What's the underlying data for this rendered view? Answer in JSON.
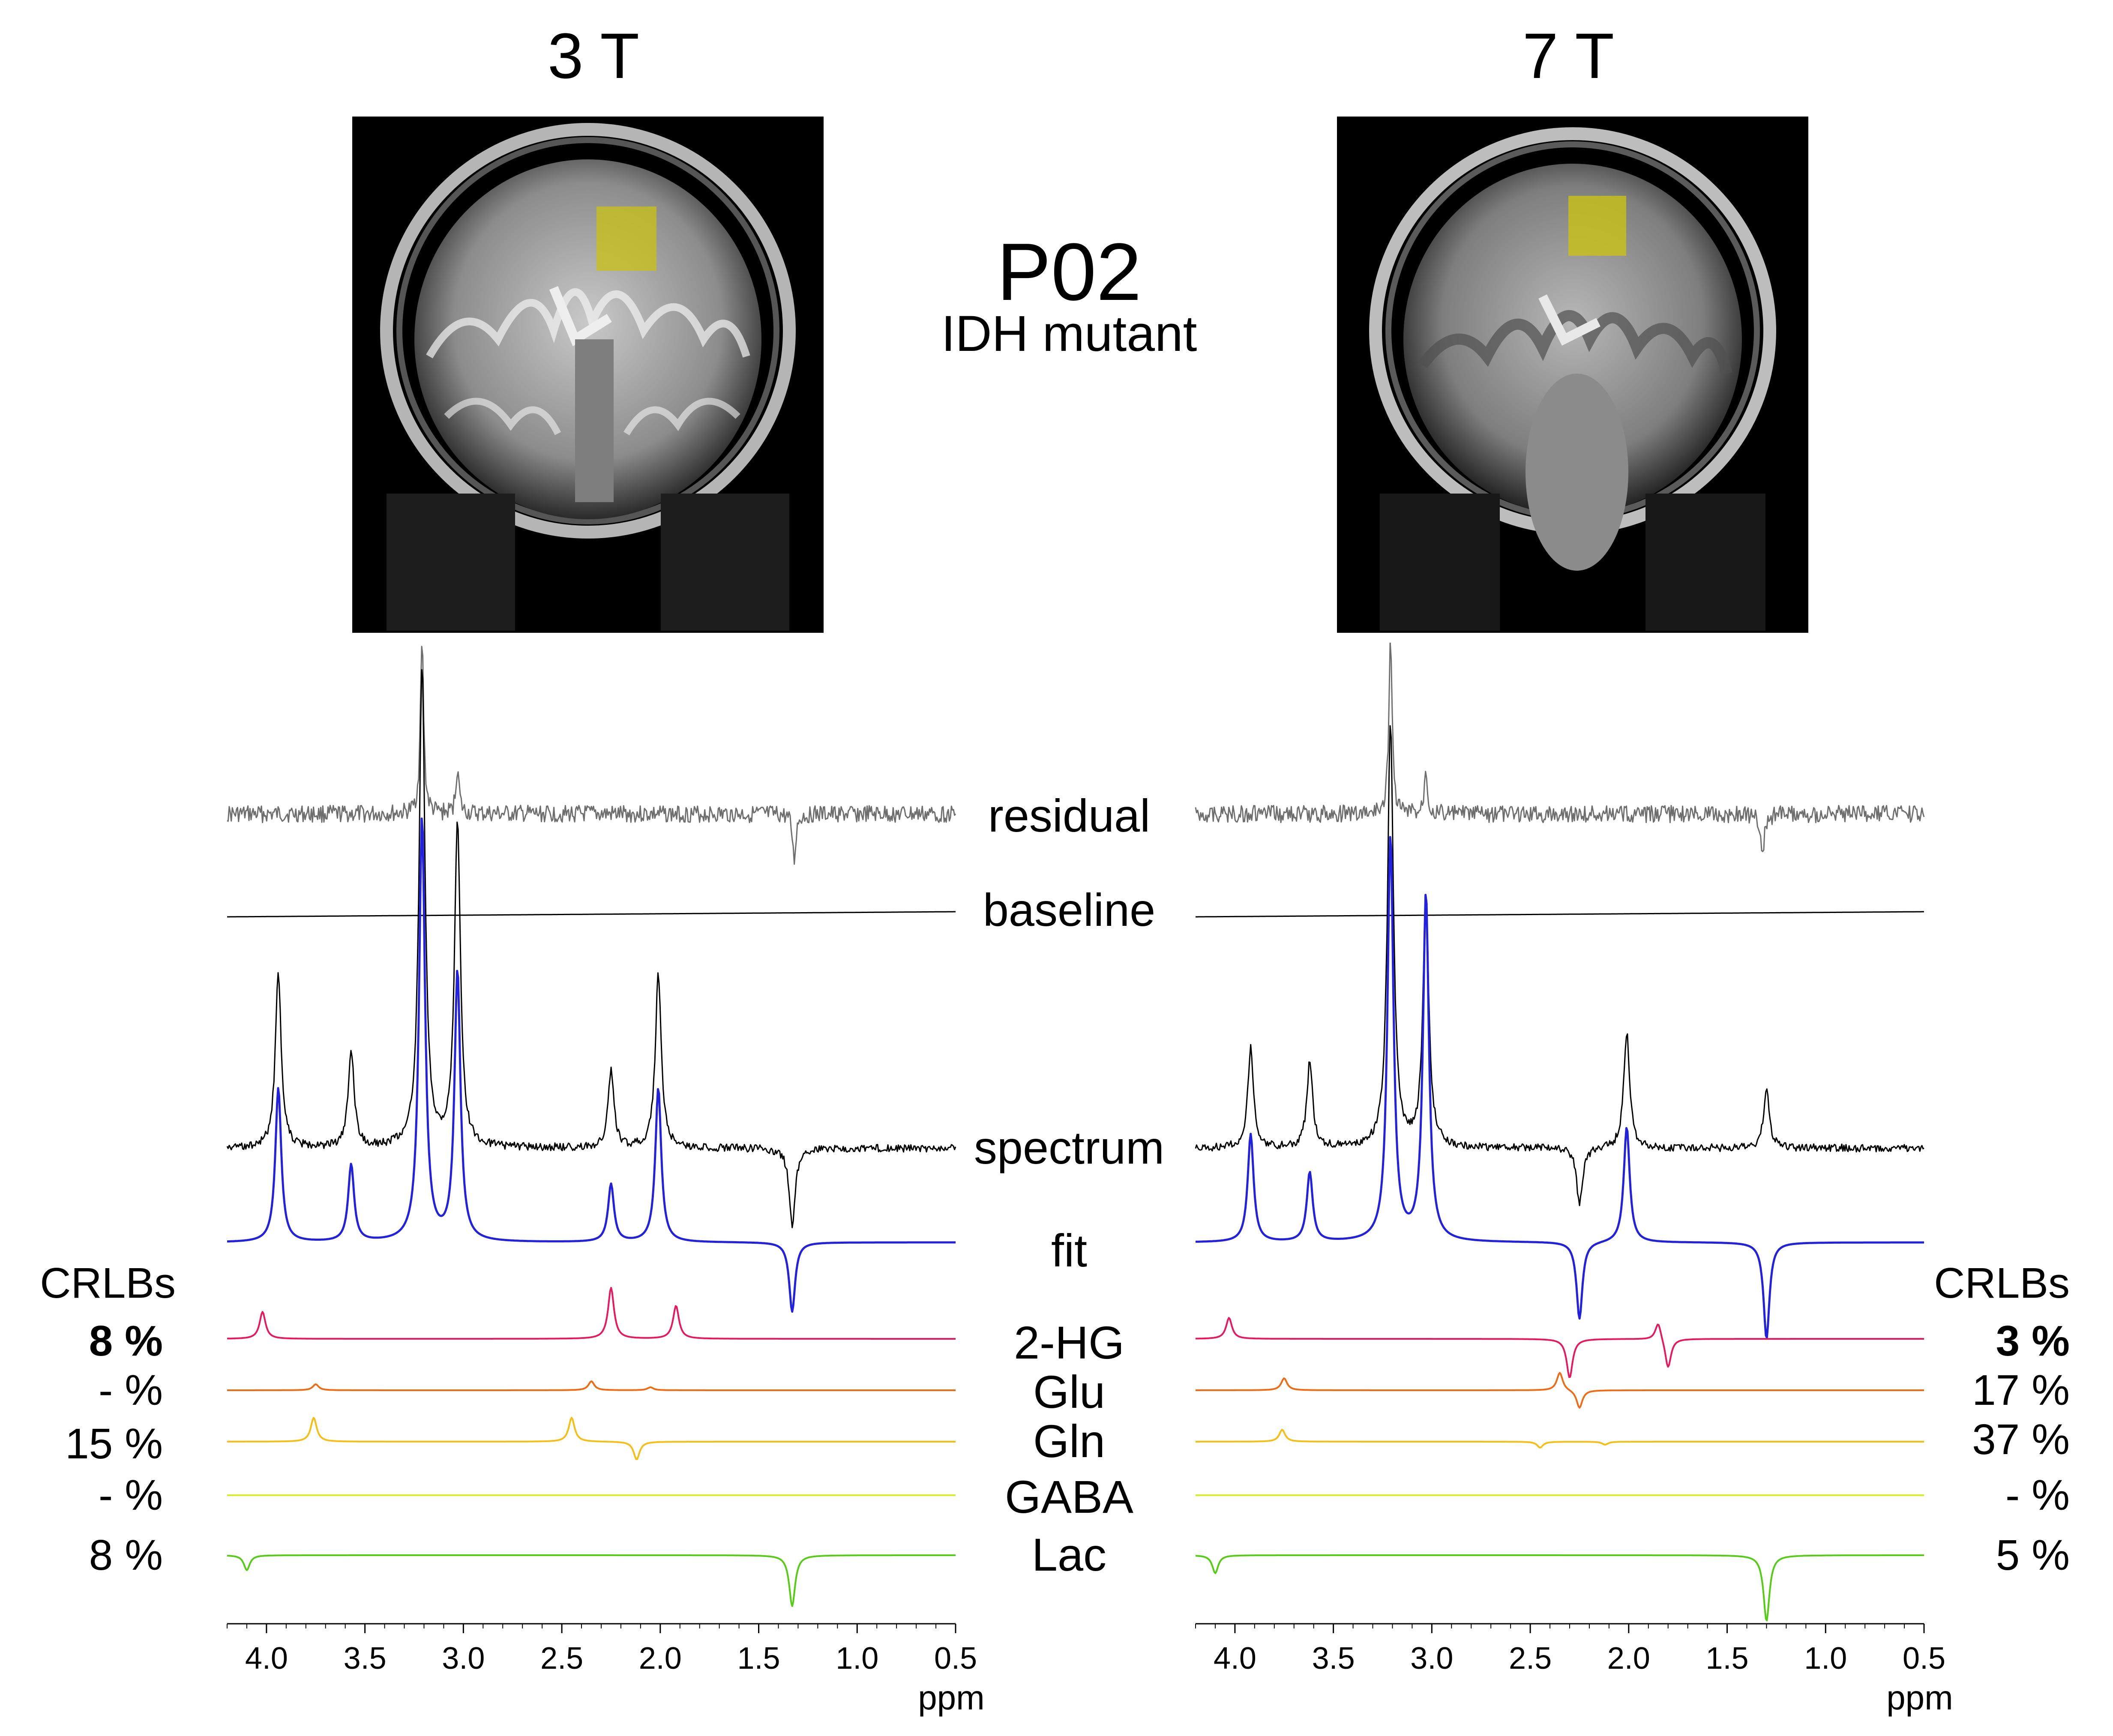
{
  "case": {
    "id": "P02",
    "subtitle": "IDH mutant"
  },
  "fields": [
    {
      "label": "3 T"
    },
    {
      "label": "7 T"
    }
  ],
  "row_labels": [
    "residual",
    "baseline",
    "spectrum",
    "fit",
    "2-HG",
    "Glu",
    "Gln",
    "GABA",
    "Lac"
  ],
  "crlb_header": "CRLBs",
  "crlbs_3T": [
    "8 %",
    "- %",
    "15 %",
    "- %",
    "8 %"
  ],
  "crlbs_7T": [
    "3 %",
    "17 %",
    "37 %",
    "- %",
    "5 %"
  ],
  "colors": {
    "residual": "#6e6e6e",
    "baseline": "#000000",
    "spectrum": "#000000",
    "fit": "#2222dd",
    "2-HG": "#e8185c",
    "Glu": "#f06a14",
    "Gln": "#f6be14",
    "GABA": "#d9ee2a",
    "Lac": "#55cc14",
    "voxel": "#c8c214"
  },
  "chart_data": [
    {
      "type": "line",
      "title": "3 T",
      "xlabel": "ppm",
      "xlim": [
        4.2,
        0.5
      ],
      "x_reversed": true,
      "x_ticks": [
        "4.0",
        "3.5",
        "3.0",
        "2.5",
        "2.0",
        "1.5",
        "1.0",
        "0.5"
      ],
      "series": [
        {
          "name": "residual",
          "peaks": []
        },
        {
          "name": "baseline",
          "peaks": []
        },
        {
          "name": "spectrum",
          "peaks": [
            [
              3.94,
              0.45
            ],
            [
              3.57,
              0.25
            ],
            [
              3.21,
              1.25
            ],
            [
              3.03,
              0.85
            ],
            [
              2.25,
              0.2
            ],
            [
              2.01,
              0.45
            ],
            [
              1.33,
              -0.2
            ]
          ]
        },
        {
          "name": "fit",
          "peaks": [
            [
              3.94,
              0.4
            ],
            [
              3.57,
              0.2
            ],
            [
              3.21,
              1.1
            ],
            [
              3.03,
              0.7
            ],
            [
              2.25,
              0.15
            ],
            [
              2.01,
              0.4
            ],
            [
              1.33,
              -0.18
            ]
          ]
        },
        {
          "name": "2-HG",
          "peaks": [
            [
              4.02,
              0.09
            ],
            [
              2.25,
              0.17
            ],
            [
              1.92,
              0.11
            ]
          ]
        },
        {
          "name": "Glu",
          "peaks": [
            [
              3.75,
              0.02
            ],
            [
              2.35,
              0.03
            ],
            [
              2.05,
              0.01
            ]
          ]
        },
        {
          "name": "Gln",
          "peaks": [
            [
              3.76,
              0.08
            ],
            [
              2.45,
              0.08
            ],
            [
              2.12,
              -0.06
            ]
          ]
        },
        {
          "name": "GABA",
          "peaks": []
        },
        {
          "name": "Lac",
          "peaks": [
            [
              4.1,
              -0.05
            ],
            [
              1.33,
              -0.17
            ]
          ]
        }
      ]
    },
    {
      "type": "line",
      "title": "7 T",
      "xlabel": "ppm",
      "xlim": [
        4.2,
        0.5
      ],
      "x_reversed": true,
      "x_ticks": [
        "4.0",
        "3.5",
        "3.0",
        "2.5",
        "2.0",
        "1.5",
        "1.0",
        "0.5"
      ],
      "series": [
        {
          "name": "residual",
          "peaks": []
        },
        {
          "name": "baseline",
          "peaks": []
        },
        {
          "name": "spectrum",
          "peaks": [
            [
              3.92,
              0.26
            ],
            [
              3.62,
              0.22
            ],
            [
              3.21,
              1.1
            ],
            [
              3.03,
              0.65
            ],
            [
              2.25,
              -0.15
            ],
            [
              2.01,
              0.3
            ],
            [
              1.3,
              0.15
            ]
          ]
        },
        {
          "name": "fit",
          "peaks": [
            [
              3.92,
              0.28
            ],
            [
              3.62,
              0.18
            ],
            [
              3.21,
              1.05
            ],
            [
              3.03,
              0.9
            ],
            [
              2.25,
              -0.2
            ],
            [
              2.01,
              0.3
            ],
            [
              1.3,
              -0.25
            ]
          ]
        },
        {
          "name": "2-HG",
          "peaks": [
            [
              4.03,
              0.07
            ],
            [
              2.3,
              -0.13
            ],
            [
              1.85,
              0.06
            ],
            [
              1.8,
              -0.1
            ]
          ]
        },
        {
          "name": "Glu",
          "peaks": [
            [
              3.75,
              0.04
            ],
            [
              2.35,
              0.06
            ],
            [
              2.25,
              -0.06
            ]
          ]
        },
        {
          "name": "Gln",
          "peaks": [
            [
              3.76,
              0.04
            ],
            [
              2.45,
              -0.02
            ],
            [
              2.12,
              -0.01
            ]
          ]
        },
        {
          "name": "GABA",
          "peaks": []
        },
        {
          "name": "Lac",
          "peaks": [
            [
              4.1,
              -0.06
            ],
            [
              1.3,
              -0.22
            ]
          ]
        }
      ]
    }
  ]
}
